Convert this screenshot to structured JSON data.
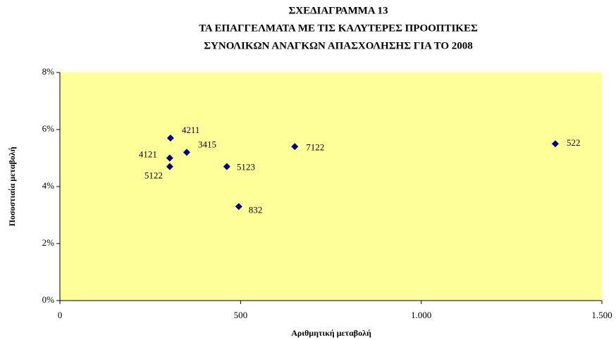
{
  "chart_data": {
    "type": "scatter",
    "title": [
      "ΣΧΕΔΙΑΓΡΑΜΜΑ 13",
      "ΤΑ ΕΠΑΓΓΕΛΜΑΤΑ ΜΕ ΤΙΣ ΚΑΛΥΤΕΡΕΣ ΠΡΟΟΠΤΙΚΕΣ",
      "ΣΥΝΟΛΙΚΩΝ ΑΝΑΓΚΩΝ ΑΠΑΣΧΟΛΗΣΗΣ ΓΙΑ ΤΟ 2008"
    ],
    "x_label": "Αριθμητική μεταβολή",
    "y_label": "Ποσοστιαία μεταβολή",
    "point_labels": [
      "4211",
      "4121",
      "5122",
      "3415",
      "5123",
      "832",
      "7122",
      "522"
    ],
    "x": [
      306,
      304,
      304,
      351,
      462,
      495,
      650,
      1371
    ],
    "values": [
      5.7,
      5.0,
      4.7,
      5.2,
      4.7,
      3.3,
      5.4,
      5.5
    ],
    "color": "#000080",
    "plot_background": "#ffff99",
    "xlim": [
      0,
      1500
    ],
    "xticks": [
      0,
      500,
      {
        "value": 1000,
        "label": "1.000"
      },
      {
        "value": 1500,
        "label": "1.500"
      }
    ],
    "ylim": [
      0,
      8
    ],
    "yticks": [
      {
        "value": 0,
        "label": "0%"
      },
      {
        "value": 2,
        "label": "2%"
      },
      {
        "value": 4,
        "label": "4%"
      },
      {
        "value": 6,
        "label": "6%"
      },
      {
        "value": 8,
        "label": "8%"
      }
    ],
    "grid": false
  }
}
